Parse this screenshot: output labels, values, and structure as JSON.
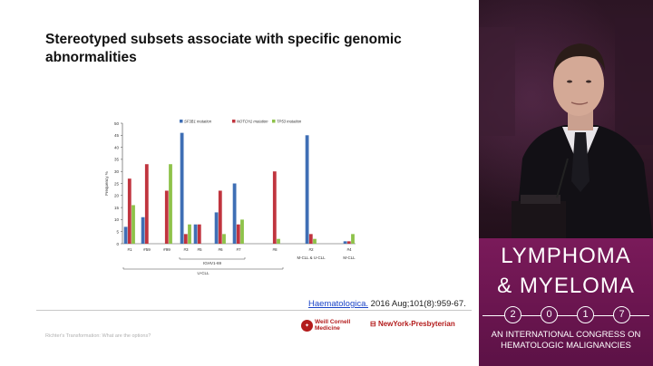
{
  "slide": {
    "title": "Stereotyped subsets associate with specific genomic abnormalities",
    "citation_link": "Haematologica.",
    "citation_rest": " 2016 Aug;101(8):959-67.",
    "footer_text": "Richter's Transformation: What are the options?",
    "logo_wcm_line1": "Weill Cornell",
    "logo_wcm_line2": "Medicine",
    "logo_nyp": "NewYork-Presbyterian"
  },
  "chart_data": {
    "type": "bar",
    "ylabel": "Frequency %",
    "ylim": [
      0,
      50
    ],
    "yticks": [
      0,
      5,
      10,
      15,
      20,
      25,
      30,
      35,
      40,
      45,
      50
    ],
    "categories": [
      "#1",
      "#59",
      "#99",
      "#3",
      "#5",
      "#6",
      "#7",
      "#8",
      "#2",
      "#4"
    ],
    "series": [
      {
        "name": "SF3B1 mutation",
        "color": "#3f6fb5",
        "values": [
          7,
          11,
          0,
          46,
          8,
          13,
          25,
          0,
          45,
          1
        ]
      },
      {
        "name": "NOTCH1 mutation",
        "color": "#c0343e",
        "values": [
          27,
          33,
          22,
          4,
          8,
          22,
          8,
          30,
          4,
          1
        ]
      },
      {
        "name": "TP53 mutation",
        "color": "#8ec24a",
        "values": [
          16,
          0,
          33,
          8,
          0,
          4,
          10,
          2,
          2,
          4
        ]
      }
    ],
    "group_labels": {
      "ighv": "IGHV1-69",
      "ucll": "U-CLL",
      "mcll_ucll": "M-CLL & U-CLL",
      "mcll": "M-CLL"
    }
  },
  "brand": {
    "line1": "LYMPHOMA",
    "line2": "& MYELOMA",
    "year_digits": [
      "2",
      "0",
      "1",
      "7"
    ],
    "subtitle_line1": "AN INTERNATIONAL CONGRESS ON",
    "subtitle_line2": "HEMATOLOGIC MALIGNANCIES"
  },
  "colors": {
    "brand_magenta": "#6a154f",
    "sf3b1": "#3f6fb5",
    "notch1": "#c0343e",
    "tp53": "#8ec24a"
  }
}
